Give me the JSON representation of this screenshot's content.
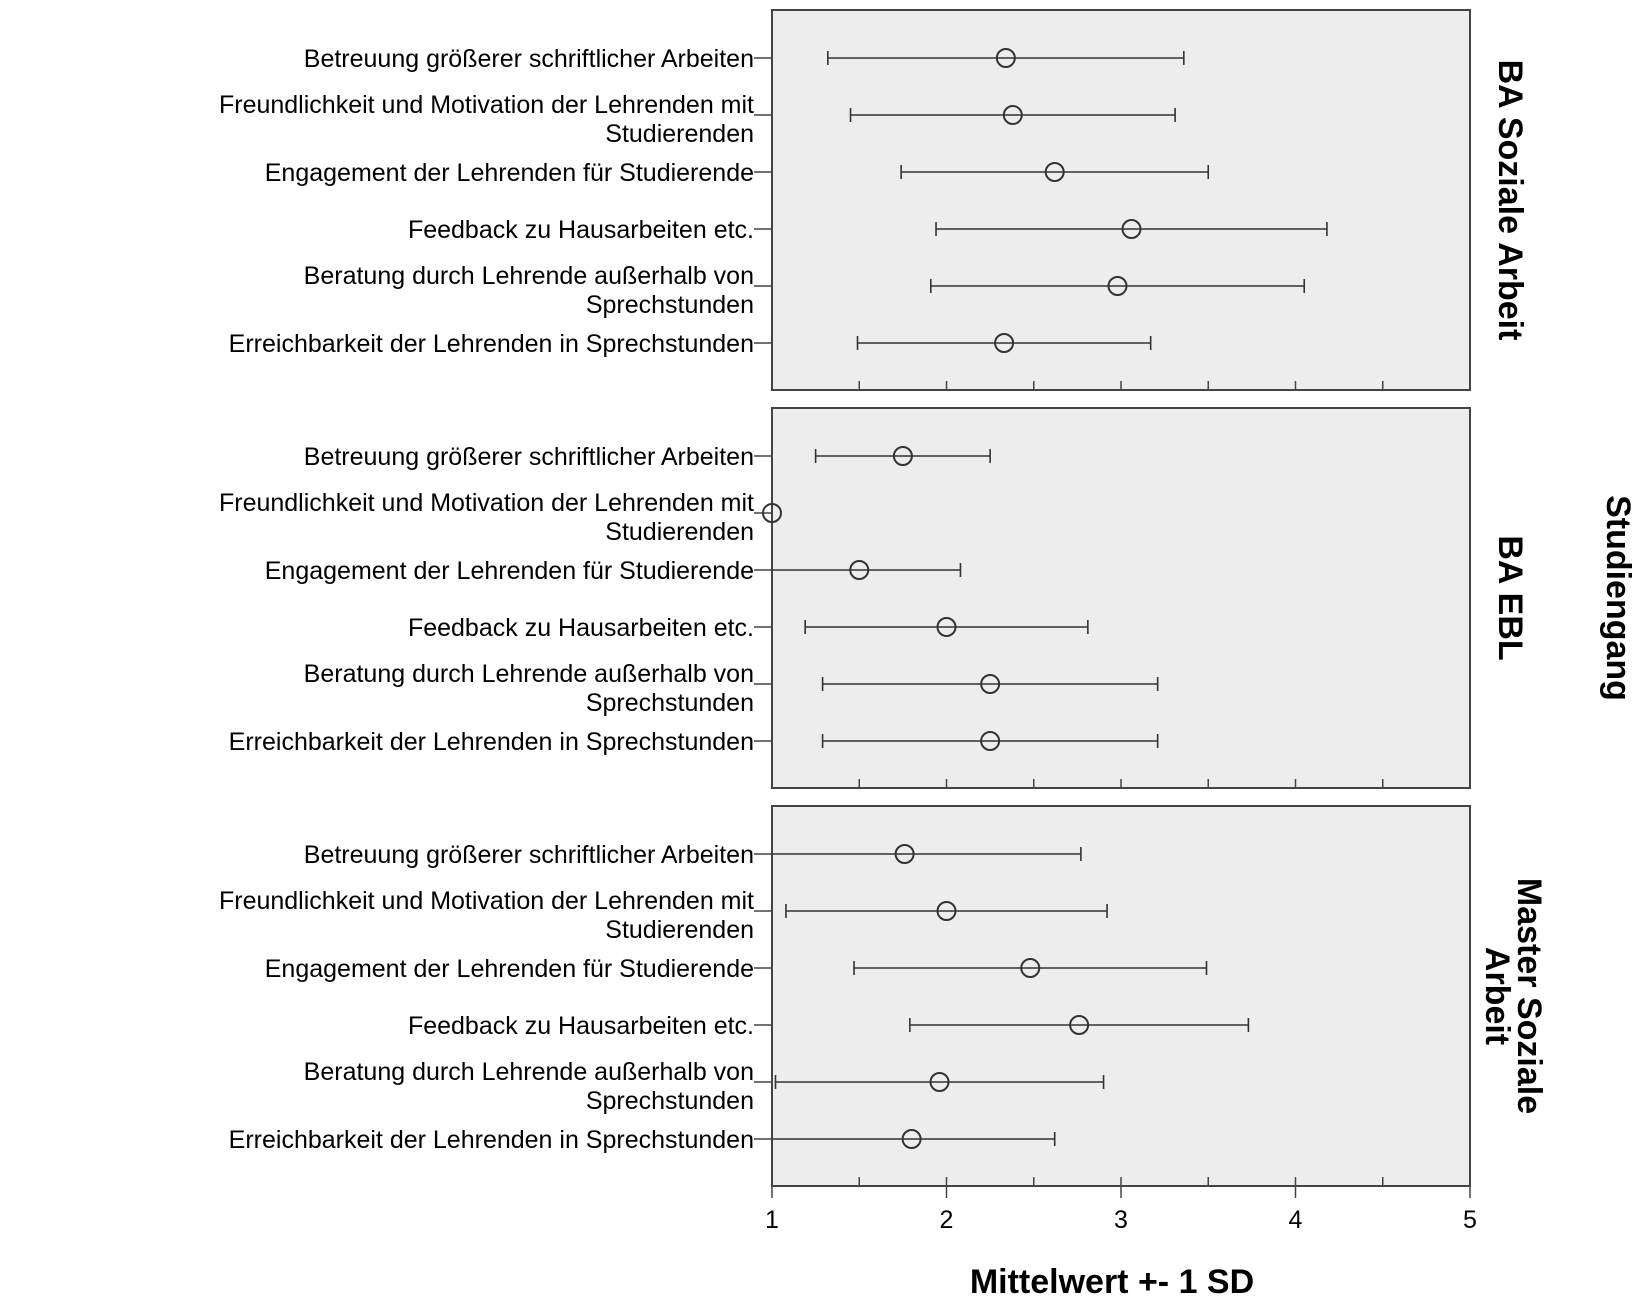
{
  "chart_data": {
    "type": "errorbar",
    "xlabel": "Mittelwert +- 1 SD",
    "group_label": "Studiengang",
    "xlim": [
      1,
      5
    ],
    "xticks": [
      1,
      2,
      3,
      4,
      5
    ],
    "grid": false,
    "colors": {
      "panel_bg": "#ededed",
      "frame": "#444444",
      "marker": "#333333"
    },
    "categories": [
      "Betreuung größerer schriftlicher Arbeiten",
      "Freundlichkeit und Motivation der Lehrenden mit Studierenden",
      "Engagement der Lehrenden für Studierende",
      "Feedback zu Hausarbeiten etc.",
      "Beratung durch Lehrende außerhalb von Sprechstunden",
      "Erreichbarkeit der Lehrenden in Sprechstunden"
    ],
    "panels": [
      {
        "name": "BA Soziale Arbeit",
        "points": [
          {
            "mean": 2.34,
            "low": 1.32,
            "high": 3.36
          },
          {
            "mean": 2.38,
            "low": 1.45,
            "high": 3.31
          },
          {
            "mean": 2.62,
            "low": 1.74,
            "high": 3.5
          },
          {
            "mean": 3.06,
            "low": 1.94,
            "high": 4.18
          },
          {
            "mean": 2.98,
            "low": 1.91,
            "high": 4.05
          },
          {
            "mean": 2.33,
            "low": 1.49,
            "high": 3.17
          }
        ]
      },
      {
        "name": "BA EBL",
        "points": [
          {
            "mean": 1.75,
            "low": 1.25,
            "high": 2.25
          },
          {
            "mean": 1.0,
            "low": 1.0,
            "high": 1.0
          },
          {
            "mean": 1.5,
            "low": 0.92,
            "high": 2.08
          },
          {
            "mean": 2.0,
            "low": 1.19,
            "high": 2.81
          },
          {
            "mean": 2.25,
            "low": 1.29,
            "high": 3.21
          },
          {
            "mean": 2.25,
            "low": 1.29,
            "high": 3.21
          }
        ]
      },
      {
        "name": "Master Soziale Arbeit",
        "points": [
          {
            "mean": 1.76,
            "low": 0.75,
            "high": 2.77
          },
          {
            "mean": 2.0,
            "low": 1.08,
            "high": 2.92
          },
          {
            "mean": 2.48,
            "low": 1.47,
            "high": 3.49
          },
          {
            "mean": 2.76,
            "low": 1.79,
            "high": 3.73
          },
          {
            "mean": 1.96,
            "low": 1.02,
            "high": 2.9
          },
          {
            "mean": 1.8,
            "low": 0.98,
            "high": 2.62
          }
        ]
      }
    ]
  }
}
